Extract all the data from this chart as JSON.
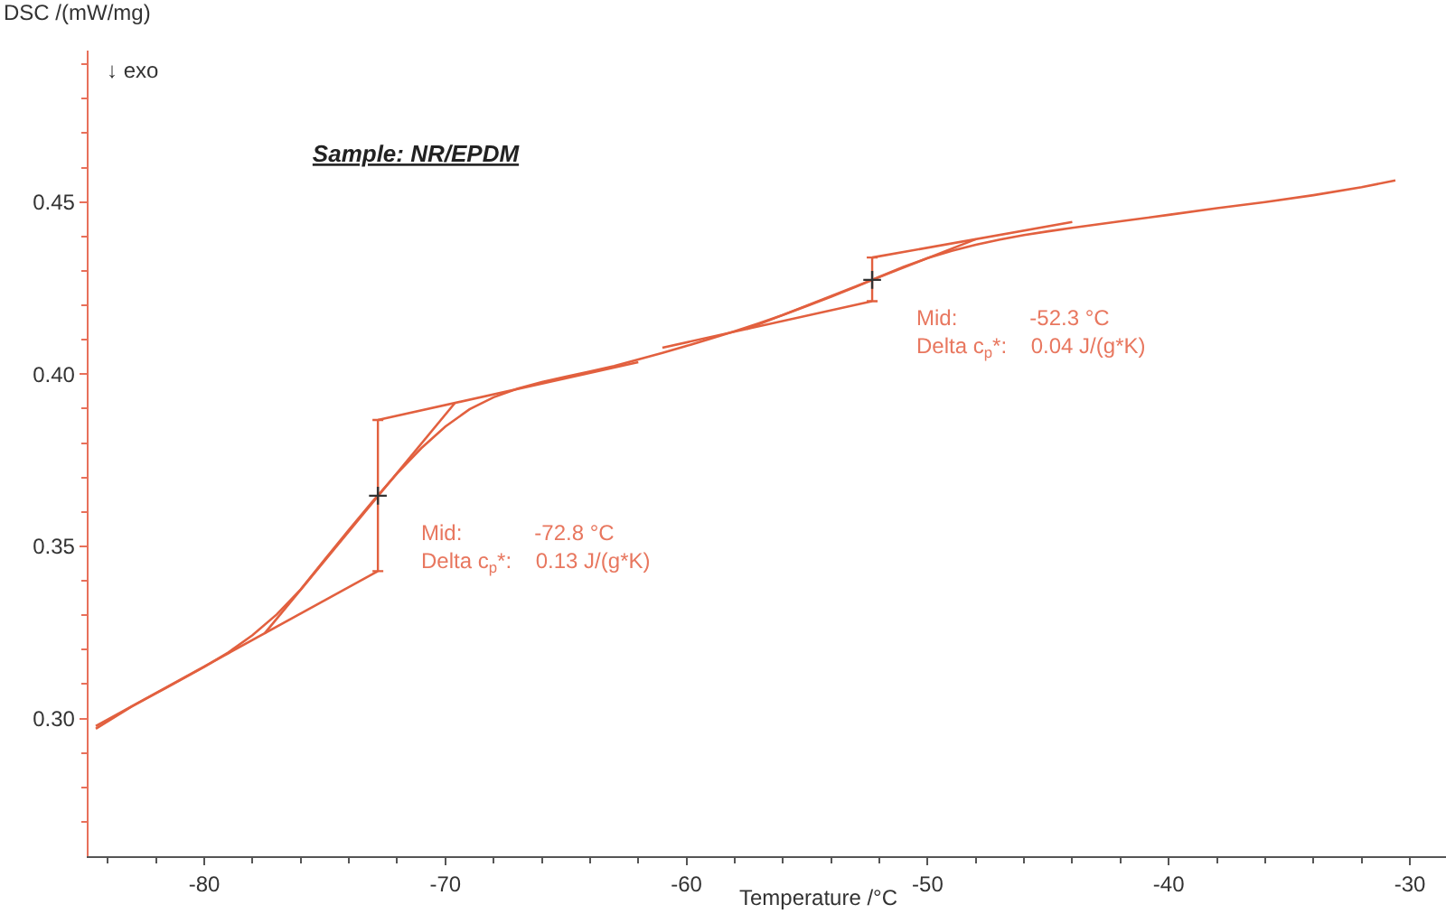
{
  "chart_data": {
    "type": "line",
    "title": "Sample: NR/EPDM",
    "xlabel": "Temperature /°C",
    "ylabel": "DSC /(mW/mg)",
    "xlim": [
      -84.8,
      -28.5
    ],
    "ylim": [
      0.26,
      0.494
    ],
    "xticks": [
      {
        "value": -84,
        "label": null
      },
      {
        "value": -82,
        "label": null
      },
      -80,
      {
        "value": -78,
        "label": null
      },
      {
        "value": -76,
        "label": null
      },
      {
        "value": -74,
        "label": null
      },
      {
        "value": -72,
        "label": null
      },
      -70,
      {
        "value": -68,
        "label": null
      },
      {
        "value": -66,
        "label": null
      },
      {
        "value": -64,
        "label": null
      },
      {
        "value": -62,
        "label": null
      },
      -60,
      {
        "value": -58,
        "label": null
      },
      {
        "value": -56,
        "label": null
      },
      {
        "value": -54,
        "label": null
      },
      {
        "value": -52,
        "label": null
      },
      -50,
      {
        "value": -48,
        "label": null
      },
      {
        "value": -46,
        "label": null
      },
      {
        "value": -44,
        "label": null
      },
      {
        "value": -42,
        "label": null
      },
      -40,
      {
        "value": -38,
        "label": null
      },
      {
        "value": -36,
        "label": null
      },
      {
        "value": -34,
        "label": null
      },
      {
        "value": -32,
        "label": null
      },
      -30
    ],
    "yticks": [
      {
        "value": 0.27,
        "label": null
      },
      {
        "value": 0.28,
        "label": null
      },
      {
        "value": 0.29,
        "label": null
      },
      {
        "value": 0.3,
        "label": "0.30"
      },
      {
        "value": 0.31,
        "label": null
      },
      {
        "value": 0.32,
        "label": null
      },
      {
        "value": 0.33,
        "label": null
      },
      {
        "value": 0.34,
        "label": null
      },
      {
        "value": 0.35,
        "label": "0.35"
      },
      {
        "value": 0.36,
        "label": null
      },
      {
        "value": 0.37,
        "label": null
      },
      {
        "value": 0.38,
        "label": null
      },
      {
        "value": 0.39,
        "label": null
      },
      {
        "value": 0.4,
        "label": "0.40"
      },
      {
        "value": 0.41,
        "label": null
      },
      {
        "value": 0.42,
        "label": null
      },
      {
        "value": 0.43,
        "label": null
      },
      {
        "value": 0.44,
        "label": null
      },
      {
        "value": 0.45,
        "label": "0.45"
      },
      {
        "value": 0.46,
        "label": null
      },
      {
        "value": 0.47,
        "label": null
      },
      {
        "value": 0.48,
        "label": null
      },
      {
        "value": 0.49,
        "label": null
      }
    ],
    "series": [
      {
        "color": "#e2603f",
        "x": [
          -84.5,
          -83,
          -82,
          -81,
          -80,
          -79,
          -78,
          -77,
          -76,
          -75,
          -74,
          -73,
          -72,
          -71,
          -70,
          -69,
          -68,
          -67,
          -66,
          -65,
          -64,
          -63,
          -62,
          -61,
          -60,
          -59,
          -58,
          -57,
          -56,
          -55,
          -54,
          -53,
          -52,
          -51,
          -50,
          -49,
          -48,
          -47,
          -46,
          -45,
          -44,
          -42,
          -40,
          -38,
          -36,
          -34,
          -32,
          -30.6
        ],
        "values": [
          0.297,
          0.3035,
          0.3073,
          0.3111,
          0.315,
          0.3192,
          0.3242,
          0.3302,
          0.3375,
          0.3462,
          0.3548,
          0.3632,
          0.3712,
          0.3785,
          0.3848,
          0.3898,
          0.3933,
          0.3958,
          0.3977,
          0.3993,
          0.4008,
          0.4024,
          0.4043,
          0.4062,
          0.4082,
          0.4103,
          0.4125,
          0.4148,
          0.4172,
          0.4198,
          0.4225,
          0.4253,
          0.4283,
          0.4312,
          0.4337,
          0.4358,
          0.4376,
          0.4391,
          0.4404,
          0.4415,
          0.4425,
          0.4444,
          0.4463,
          0.4482,
          0.45,
          0.452,
          0.4543,
          0.4563
        ]
      },
      {
        "color": "#e2603f",
        "x": [
          -84.5,
          -72.8
        ],
        "values": [
          0.2978,
          0.3428
        ]
      },
      {
        "color": "#e2603f",
        "x": [
          -77.5,
          -69.6
        ],
        "values": [
          0.3247,
          0.3917
        ]
      },
      {
        "color": "#e2603f",
        "x": [
          -72.8,
          -62
        ],
        "values": [
          0.3867,
          0.4035
        ]
      },
      {
        "color": "#e2603f",
        "x": [
          -61,
          -52.3
        ],
        "values": [
          0.4077,
          0.4212
        ]
      },
      {
        "color": "#e2603f",
        "x": [
          -57.5,
          -48
        ],
        "values": [
          0.4131,
          0.4392
        ]
      },
      {
        "color": "#e2603f",
        "x": [
          -52.3,
          -44
        ],
        "values": [
          0.4339,
          0.4442
        ]
      },
      {
        "type": "scatter",
        "color": "#e2603f",
        "colors": [
          "#333333",
          "#333333"
        ],
        "marker": "cross",
        "x": [
          -72.8,
          -52.3
        ],
        "values": [
          0.3647,
          0.4274
        ],
        "errors": [
          [
            0.3428,
            0.3867
          ],
          [
            0.4212,
            0.4339
          ]
        ]
      }
    ],
    "annotations": [
      "↓ exo",
      {
        "text": "Mid: -72.8 °C\nDelta c$_{p}$*: 0.13 J/(g*K)",
        "x": -72.8,
        "y": 0.3647
      },
      {
        "text": "Mid: -52.3 °C\nDelta c$_{p}$*: 0.04 J/(g*K)",
        "x": -52.3,
        "y": 0.4274
      }
    ]
  }
}
